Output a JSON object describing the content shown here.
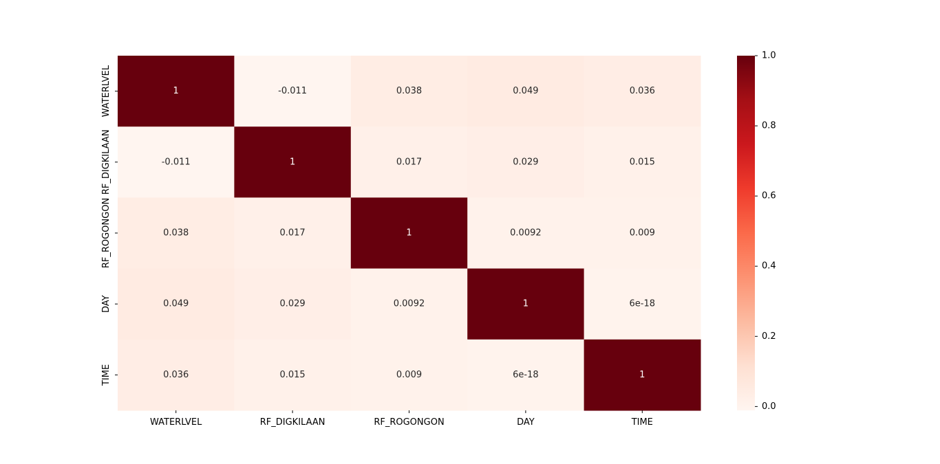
{
  "chart_data": {
    "type": "heatmap",
    "title": "",
    "xlabel": "",
    "ylabel": "",
    "x_labels": [
      "WATERLVEL",
      "RF_DIGKILAAN",
      "RF_ROGONGON",
      "DAY",
      "TIME"
    ],
    "y_labels": [
      "WATERLVEL",
      "RF_DIGKILAAN",
      "RF_ROGONGON",
      "DAY",
      "TIME"
    ],
    "values": [
      [
        1,
        -0.011,
        0.038,
        0.049,
        0.036
      ],
      [
        -0.011,
        1,
        0.017,
        0.029,
        0.015
      ],
      [
        0.038,
        0.017,
        1,
        0.0092,
        0.009
      ],
      [
        0.049,
        0.029,
        0.0092,
        1,
        6e-18
      ],
      [
        0.036,
        0.015,
        0.009,
        6e-18,
        1
      ]
    ],
    "annotations": [
      [
        "1",
        "-0.011",
        "0.038",
        "0.049",
        "0.036"
      ],
      [
        "-0.011",
        "1",
        "0.017",
        "0.029",
        "0.015"
      ],
      [
        "0.038",
        "0.017",
        "1",
        "0.0092",
        "0.009"
      ],
      [
        "0.049",
        "0.029",
        "0.0092",
        "1",
        "6e-18"
      ],
      [
        "0.036",
        "0.015",
        "0.009",
        "6e-18",
        "1"
      ]
    ],
    "colormap": "Reds",
    "colorbar": {
      "range": [
        -0.011,
        1.0
      ],
      "ticks": [
        0.0,
        0.2,
        0.4,
        0.6,
        0.8,
        1.0
      ],
      "tick_labels": [
        "0.0",
        "0.2",
        "0.4",
        "0.6",
        "0.8",
        "1.0"
      ]
    },
    "colors": {
      "low": "#fff5f0",
      "high": "#67000d",
      "annotation_dark": "#262626",
      "annotation_light": "#ffffff"
    }
  }
}
